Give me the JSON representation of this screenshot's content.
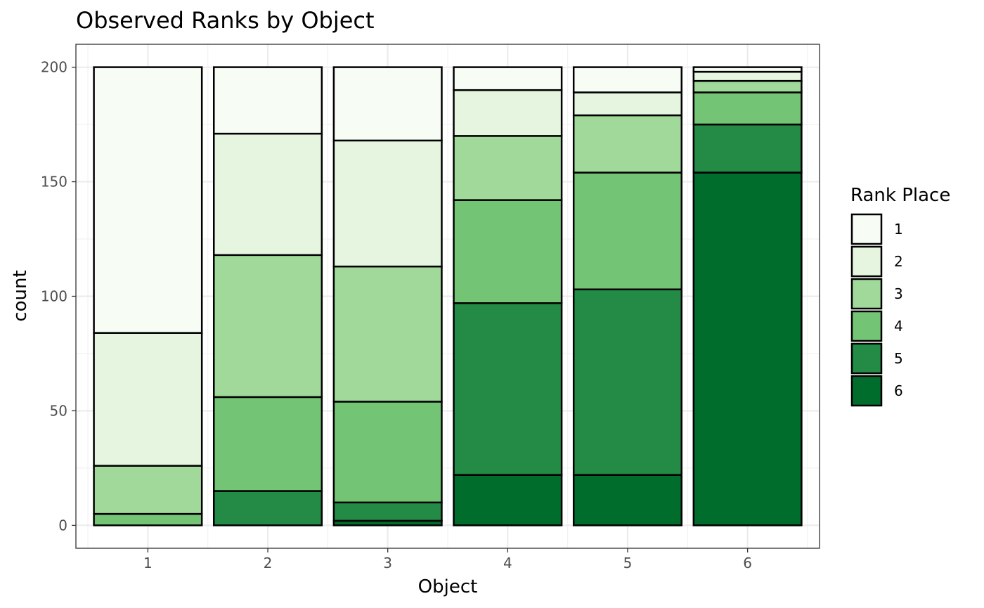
{
  "chart_data": {
    "type": "bar",
    "stacked": true,
    "title": "Observed Ranks by Object",
    "xlabel": "Object",
    "ylabel": "count",
    "categories": [
      "1",
      "2",
      "3",
      "4",
      "5",
      "6"
    ],
    "ylim": [
      -10,
      210
    ],
    "y_ticks": [
      0,
      50,
      100,
      150,
      200
    ],
    "grid": true,
    "legend": {
      "title": "Rank Place",
      "position": "right"
    },
    "series": [
      {
        "name": "1",
        "color": "#f7fcf5",
        "values": [
          116,
          29,
          32,
          10,
          11,
          2
        ]
      },
      {
        "name": "2",
        "color": "#e5f5e0",
        "values": [
          58,
          53,
          55,
          20,
          10,
          4
        ]
      },
      {
        "name": "3",
        "color": "#a1d99b",
        "values": [
          21,
          62,
          59,
          28,
          25,
          5
        ]
      },
      {
        "name": "4",
        "color": "#74c476",
        "values": [
          5,
          41,
          44,
          45,
          51,
          14
        ]
      },
      {
        "name": "5",
        "color": "#238b45",
        "values": [
          0,
          15,
          8,
          75,
          81,
          21
        ]
      },
      {
        "name": "6",
        "color": "#006d2c",
        "values": [
          0,
          0,
          2,
          22,
          22,
          154
        ]
      }
    ]
  }
}
